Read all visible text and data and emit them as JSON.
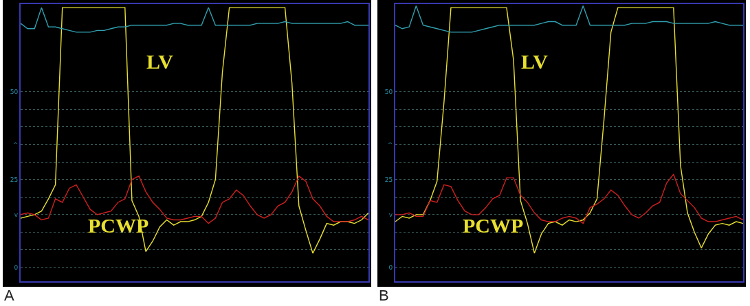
{
  "chart_data": [
    {
      "type": "line",
      "annotations": [
        "A"
      ],
      "categories": [
        null,
        null,
        null,
        null,
        null,
        null,
        null,
        null,
        null,
        null,
        null,
        null,
        null,
        null,
        null,
        null,
        null,
        null,
        null,
        null,
        null,
        null,
        null,
        null,
        null,
        null,
        null,
        null,
        null,
        null,
        null,
        null,
        null,
        null,
        null,
        null,
        null,
        null,
        null,
        null,
        null,
        null,
        null,
        null,
        null,
        null,
        null,
        null,
        null,
        null,
        null
      ],
      "series": [
        {
          "name": "LV",
          "color": "#e8e030",
          "values": [
            14,
            14.5,
            15,
            16,
            19.5,
            23.5,
            74,
            74,
            74,
            74,
            74,
            74,
            74,
            74,
            74,
            74,
            19,
            14.5,
            4.5,
            7.5,
            11.5,
            13.5,
            12,
            13,
            13,
            13.5,
            14.5,
            18.5,
            25,
            55.5,
            74,
            74,
            74,
            74,
            74,
            74,
            74,
            74,
            74,
            52.5,
            17.5,
            10.5,
            4,
            8,
            12.5,
            12,
            13,
            13,
            12.5,
            13.5,
            15.5
          ]
        },
        {
          "name": "PCWP",
          "color": "#d02020",
          "values": [
            15,
            15.5,
            15,
            13.5,
            14,
            19.5,
            18.5,
            22.5,
            23.5,
            20,
            16.5,
            15,
            15.5,
            16,
            18.5,
            19.5,
            25,
            26,
            21.5,
            18.5,
            16.5,
            14,
            13.5,
            13.5,
            14,
            14.5,
            14.5,
            12.5,
            14,
            18.5,
            19.5,
            22,
            20.5,
            17.5,
            15,
            14,
            15,
            17.5,
            18.5,
            21.5,
            26,
            24.5,
            19.5,
            17.5,
            14.5,
            13,
            13,
            13,
            13.5,
            14.5,
            13.5
          ]
        },
        {
          "color": "#30a0b0",
          "values": [
            69.5,
            68,
            68,
            74,
            68.5,
            68.5,
            68,
            67.5,
            67,
            67,
            67,
            67.5,
            67.5,
            68,
            68.5,
            68.5,
            69,
            69,
            69,
            69,
            69,
            69,
            69.5,
            69.5,
            69,
            69,
            69,
            74,
            69,
            69,
            69,
            69,
            69,
            69,
            69.5,
            69.5,
            69.5,
            69.5,
            70,
            69.5,
            69.5,
            69.5,
            69.5,
            69.5,
            69.5,
            69.5,
            69.5,
            70,
            69,
            69,
            69
          ]
        }
      ],
      "ylim": [
        -4,
        75
      ],
      "yticks": [
        0,
        {
          "value": 5,
          "label": null
        },
        {
          "value": 10,
          "label": null
        },
        {
          "value": 15,
          "label": "v"
        },
        {
          "value": 20,
          "label": null
        },
        25,
        {
          "value": 30,
          "label": null
        },
        {
          "value": 35,
          "label": "^"
        },
        {
          "value": 40,
          "label": null
        },
        {
          "value": 45,
          "label": null
        },
        50
      ],
      "grid": "y",
      "legend": false,
      "tick_labels": "y",
      "marker": "none",
      "line_style": "solid"
    },
    {
      "type": "line",
      "annotations": [
        "B"
      ],
      "categories": [
        null,
        null,
        null,
        null,
        null,
        null,
        null,
        null,
        null,
        null,
        null,
        null,
        null,
        null,
        null,
        null,
        null,
        null,
        null,
        null,
        null,
        null,
        null,
        null,
        null,
        null,
        null,
        null,
        null,
        null,
        null,
        null,
        null,
        null,
        null,
        null,
        null,
        null,
        null,
        null,
        null,
        null,
        null,
        null,
        null,
        null,
        null,
        null,
        null,
        null,
        null
      ],
      "series": [
        {
          "name": "LV",
          "color": "#e8e030",
          "values": [
            13,
            14.5,
            14,
            15,
            15,
            19,
            24.5,
            47,
            74,
            74,
            74,
            74,
            74,
            74,
            74,
            74,
            74,
            59,
            19,
            12.5,
            4,
            9.5,
            12.5,
            13,
            12,
            13.5,
            13,
            13.5,
            15.5,
            19.5,
            42,
            67,
            74,
            74,
            74,
            74,
            74,
            74,
            74,
            74,
            74,
            29,
            15.5,
            10,
            5.5,
            9.5,
            12,
            12.5,
            12,
            13,
            12.5
          ]
        },
        {
          "name": "PCWP",
          "color": "#d02020",
          "values": [
            15,
            15,
            15.5,
            14.5,
            14.5,
            19,
            18.5,
            23.5,
            23,
            19,
            16,
            15,
            15,
            17,
            19.5,
            20.5,
            25.5,
            25.5,
            20.5,
            18.5,
            15.5,
            13.5,
            13,
            13,
            14,
            14.5,
            14,
            12.5,
            17,
            18,
            19.5,
            22,
            20.5,
            17.5,
            15,
            14,
            15.5,
            17.5,
            18.5,
            24,
            26.5,
            21,
            19,
            17,
            14,
            13,
            13,
            13.5,
            14,
            14.5,
            13.5
          ]
        },
        {
          "color": "#30a0b0",
          "values": [
            69,
            68,
            68.5,
            74.5,
            69,
            68.5,
            68,
            67.5,
            67,
            67,
            67,
            67,
            67.5,
            68,
            68.5,
            69,
            69,
            69,
            69,
            69,
            69,
            69.5,
            70,
            70,
            69,
            69,
            69,
            74.5,
            69,
            69,
            69,
            69,
            69,
            69,
            69.5,
            69.5,
            69.5,
            70,
            70,
            70,
            69.5,
            69.5,
            69.5,
            69.5,
            69.5,
            69.5,
            70,
            69.5,
            69,
            69,
            69
          ]
        }
      ],
      "ylim": [
        -4,
        75
      ],
      "yticks": [
        0,
        {
          "value": 5,
          "label": null
        },
        {
          "value": 10,
          "label": null
        },
        {
          "value": 15,
          "label": "v"
        },
        {
          "value": 20,
          "label": null
        },
        25,
        {
          "value": 30,
          "label": null
        },
        {
          "value": 35,
          "label": "^"
        },
        {
          "value": 40,
          "label": null
        },
        {
          "value": 45,
          "label": null
        },
        50
      ],
      "grid": "y",
      "legend": false,
      "tick_labels": "y",
      "marker": "none",
      "line_style": "solid"
    }
  ]
}
